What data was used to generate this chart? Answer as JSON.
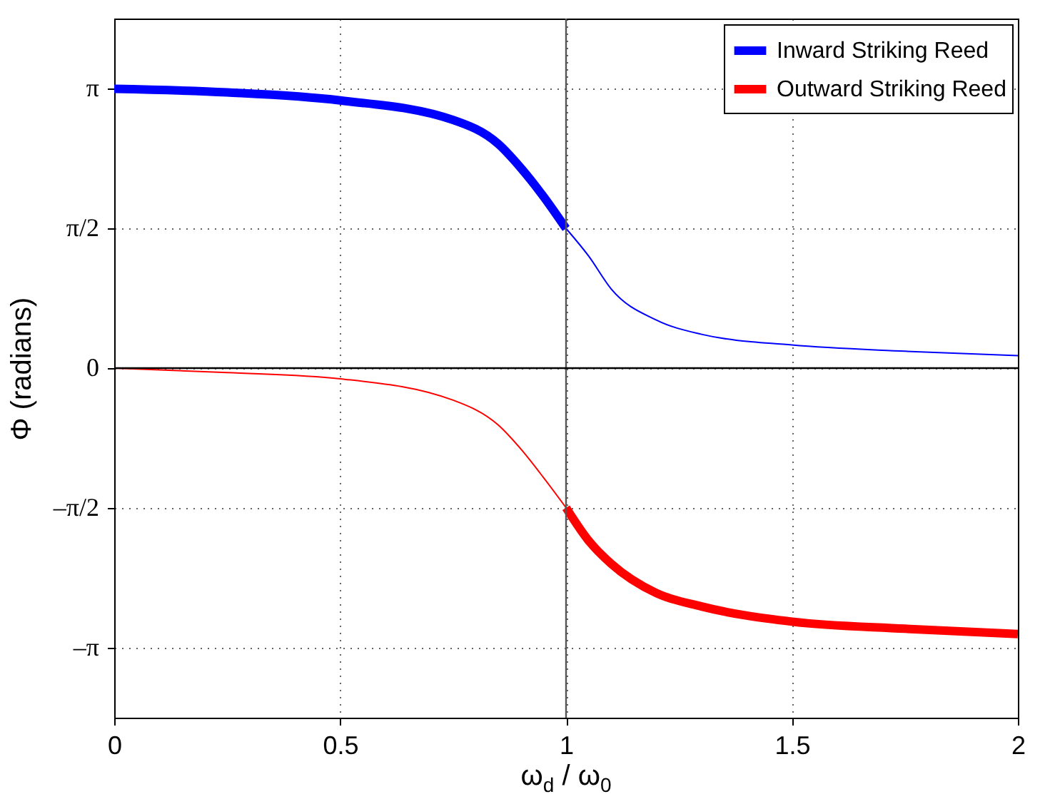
{
  "chart_data": {
    "type": "line",
    "xlabel": "ω$_{d}$ / ω$_{0}$",
    "ylabel": "Φ (radians)",
    "xlim": [
      0,
      2
    ],
    "xticks": [
      0,
      0.5,
      1,
      1.5,
      2
    ],
    "ylim": [
      -3.93,
      3.93
    ],
    "yticks": [
      {
        "value": -3.1416,
        "label": "–π"
      },
      {
        "value": -1.5708,
        "label": "–π/2"
      },
      {
        "value": 0,
        "label": "0"
      },
      {
        "value": 1.5708,
        "label": "π/2"
      },
      {
        "value": 3.1416,
        "label": "π"
      }
    ],
    "grid": true,
    "line_style": "solid",
    "legend": "top right",
    "series": [
      {
        "name": "Inward Striking Reed",
        "color": "#0000ff",
        "x": [
          0,
          0.25,
          0.5,
          0.75,
          0.85,
          0.9,
          0.95,
          1
        ],
        "values": [
          3.14,
          3.1,
          3.01,
          2.79,
          2.52,
          2.25,
          1.93,
          1.57
        ]
      },
      {
        "color": "#0000ff",
        "x": [
          1,
          1.05,
          1.1,
          1.2,
          1.3,
          1.5,
          1.75,
          2
        ],
        "values": [
          1.57,
          1.26,
          0.89,
          0.54,
          0.38,
          0.26,
          0.19,
          0.14
        ]
      },
      {
        "name": "Outward Striking Reed",
        "color": "#ff0000",
        "x": [
          1,
          1.05,
          1.1,
          1.2,
          1.3,
          1.5,
          1.75,
          2
        ],
        "values": [
          -1.57,
          -1.94,
          -2.2,
          -2.53,
          -2.68,
          -2.85,
          -2.93,
          -2.99
        ]
      },
      {
        "color": "#ff0000",
        "x": [
          0,
          0.25,
          0.5,
          0.75,
          0.85,
          0.9,
          0.95,
          1
        ],
        "values": [
          0,
          -0.05,
          -0.12,
          -0.36,
          -0.64,
          -0.91,
          -1.23,
          -1.57
        ]
      }
    ],
    "ref_lines": [
      {
        "axis": "x",
        "value": 1,
        "color": "#555555"
      },
      {
        "axis": "y",
        "value": 0,
        "color": "#000000"
      }
    ]
  }
}
